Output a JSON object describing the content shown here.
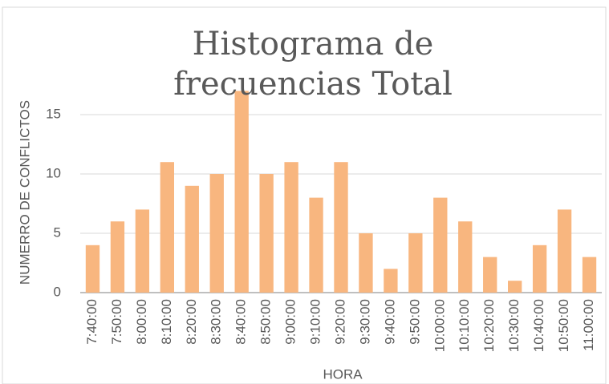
{
  "chart_data": {
    "type": "bar",
    "title": "Histograma de frecuencias Total",
    "x_label": "HORA",
    "y_label": "NUMERRO DE CONFLICTOS",
    "categories": [
      "7:40:00",
      "7:50:00",
      "8:00:00",
      "8:10:00",
      "8:20:00",
      "8:30:00",
      "8:40:00",
      "8:50:00",
      "9:00:00",
      "9:10:00",
      "9:20:00",
      "9:30:00",
      "9:40:00",
      "9:50:00",
      "10:00:00",
      "10:10:00",
      "10:20:00",
      "10:30:00",
      "10:40:00",
      "10:50:00",
      "11:00:00"
    ],
    "values": [
      4,
      6,
      7,
      11,
      9,
      10,
      17,
      10,
      11,
      8,
      11,
      5,
      2,
      5,
      8,
      6,
      3,
      1,
      4,
      7,
      3
    ],
    "color": "#f8b67f",
    "ylim": [
      0,
      18
    ],
    "yticks": [
      0,
      5,
      10,
      15
    ],
    "grid": true
  }
}
